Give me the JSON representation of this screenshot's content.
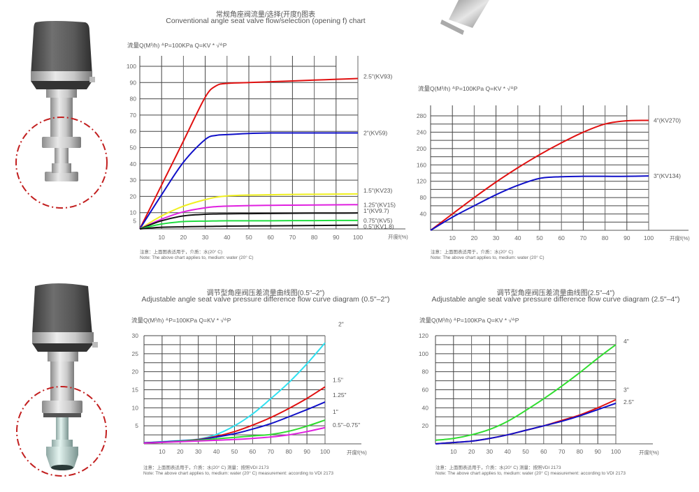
{
  "page": {
    "chart1_title_cn": "常规角座阀流量/选择(开度f)图表",
    "chart1_title_en": "Conventional angle seat valve flow/selection (opening f) chart",
    "chart3_title_cn": "调节型角座阀压差流量曲线图(0.5\"–2\")",
    "chart3_title_en": "Adjustable angle seat valve pressure difference flow curve diagram (0.5\"–2\")",
    "chart4_title_cn": "调节型角座阀压差流量曲线图(2.5\"–4\")",
    "chart4_title_en": "Adjustable angle seat valve pressure difference flow curve diagram (2.5\"–4\")",
    "formula": "流量Q(M³/h)  ᐞP=100KPa   Q=KV *   √ᐞP",
    "x_unit": "开度f(%)",
    "note_cn_simple": "注意：上面图表适用于，介质：水(20° C)",
    "note_en_simple": "Note: The above chart applies to, medium: water (20° C)",
    "note_cn_vdi": "注意：上面图表适用于，介质：水(20° C)  测量：按照VDI 2173",
    "note_en_vdi": "Note: The above chart applies to, medium: water (20° C) measurement: according to VDI 2173"
  },
  "images": {
    "valve_top": "conventional-angle-seat-valve",
    "valve_bottom": "adjustable-angle-seat-valve",
    "valve_partial_top": "valve-body-fragment"
  },
  "chart_data": [
    {
      "type": "line",
      "title": "Conventional angle seat valve flow/selection (opening f) chart",
      "xlabel": "开度f(%)",
      "ylabel": "流量Q(M³/h)",
      "xlim": [
        0,
        100
      ],
      "ylim": [
        0,
        100
      ],
      "xticks": [
        10,
        20,
        30,
        40,
        50,
        60,
        70,
        80,
        90,
        100
      ],
      "yticks": [
        5,
        10,
        20,
        30,
        40,
        50,
        60,
        70,
        80,
        90,
        100
      ],
      "grid": true,
      "x": [
        0,
        10,
        20,
        30,
        35,
        40,
        50,
        60,
        70,
        80,
        90,
        100
      ],
      "series": [
        {
          "name": "2.5\"(KV93)",
          "color": "#e01010",
          "values": [
            0,
            27,
            54,
            81,
            88,
            89.5,
            90,
            90.5,
            91,
            91.5,
            92,
            92.5
          ]
        },
        {
          "name": "2\"(KV59)",
          "color": "#1010c8",
          "values": [
            0,
            21,
            41,
            55,
            57.5,
            58,
            58.7,
            59,
            59,
            59,
            59,
            59
          ]
        },
        {
          "name": "1.5\"(KV23)",
          "color": "#f0f020",
          "values": [
            0,
            8,
            14,
            18,
            19.5,
            20.3,
            20.8,
            21,
            21.2,
            21.3,
            21.4,
            21.5
          ]
        },
        {
          "name": "1.25\"(KV15)",
          "color": "#e020e0",
          "values": [
            0,
            6,
            10.5,
            13,
            13.7,
            14,
            14.3,
            14.5,
            14.6,
            14.7,
            14.8,
            14.9
          ]
        },
        {
          "name": "1\"(KV9.7)",
          "color": "#111111",
          "values": [
            0,
            5,
            8,
            9,
            9.2,
            9.3,
            9.4,
            9.5,
            9.6,
            9.7,
            9.7,
            9.8
          ]
        },
        {
          "name": "0.75\"(KV5)",
          "color": "#20dd40",
          "values": [
            0,
            3,
            4.5,
            4.8,
            4.9,
            5,
            5,
            5,
            5.1,
            5.1,
            5.2,
            5.2
          ]
        },
        {
          "name": "0.5\"(KV1.8)",
          "color": "#111111",
          "values": [
            0,
            1,
            1.3,
            1.5,
            1.6,
            1.7,
            1.8,
            1.9,
            2,
            2.1,
            2.2,
            2.3
          ]
        }
      ]
    },
    {
      "type": "line",
      "title": "",
      "xlabel": "开度f(%)",
      "ylabel": "流量Q(M³/h)",
      "xlim": [
        0,
        100
      ],
      "ylim": [
        0,
        300
      ],
      "xticks": [
        10,
        20,
        30,
        40,
        50,
        60,
        70,
        80,
        90,
        100
      ],
      "yticks": [
        40,
        80,
        120,
        160,
        200,
        240,
        280
      ],
      "grid": true,
      "x": [
        0,
        10,
        20,
        30,
        40,
        50,
        60,
        70,
        80,
        90,
        100
      ],
      "series": [
        {
          "name": "4\"(KV270)",
          "color": "#e01010",
          "values": [
            0,
            40,
            80,
            118,
            153,
            185,
            214,
            240,
            260,
            268,
            269
          ]
        },
        {
          "name": "3\"(KV134)",
          "color": "#1010c8",
          "values": [
            0,
            32,
            60,
            87,
            110,
            127,
            131,
            132,
            132,
            132,
            133
          ]
        }
      ]
    },
    {
      "type": "line",
      "title": "Adjustable angle seat valve pressure difference flow curve diagram (0.5\"–2\")",
      "xlabel": "开度f(%)",
      "ylabel": "流量Q(M³/h)",
      "xlim": [
        0,
        100
      ],
      "ylim": [
        0,
        30
      ],
      "xticks": [
        10,
        20,
        30,
        40,
        50,
        60,
        70,
        80,
        90,
        100
      ],
      "yticks": [
        5,
        10,
        15,
        20,
        25,
        30
      ],
      "grid": true,
      "x": [
        0,
        10,
        20,
        30,
        40,
        50,
        60,
        70,
        80,
        90,
        100
      ],
      "series": [
        {
          "name": "2\"",
          "color": "#30e0f0",
          "values": [
            0.3,
            0.6,
            0.9,
            1.3,
            2.6,
            5,
            8.3,
            12.5,
            17,
            22.2,
            28
          ]
        },
        {
          "name": "1.5\"",
          "color": "#e01010",
          "values": [
            0.3,
            0.5,
            0.8,
            1.2,
            2.1,
            3.4,
            5.2,
            7.3,
            9.8,
            12.6,
            15.8
          ]
        },
        {
          "name": "1.25\"",
          "color": "#1010c8",
          "values": [
            0.3,
            0.5,
            0.8,
            1.1,
            1.9,
            2.8,
            4.1,
            5.6,
            7.5,
            9.5,
            11.6
          ]
        },
        {
          "name": "1\"",
          "color": "#30dd30",
          "values": [
            0.2,
            0.4,
            0.7,
            1,
            1.4,
            1.8,
            2.2,
            2.6,
            3.5,
            4.9,
            6.6
          ]
        },
        {
          "name": "0.5\"–0.75\"",
          "color": "#e020e0",
          "values": [
            0.2,
            0.4,
            0.6,
            0.8,
            1,
            1.2,
            1.5,
            1.9,
            2.5,
            3.4,
            4.5
          ]
        }
      ]
    },
    {
      "type": "line",
      "title": "Adjustable angle seat valve pressure difference flow curve diagram (2.5\"–4\")",
      "xlabel": "开度f(%)",
      "ylabel": "流量Q(M³/h)",
      "xlim": [
        0,
        100
      ],
      "ylim": [
        0,
        120
      ],
      "xticks": [
        10,
        20,
        30,
        40,
        50,
        60,
        70,
        80,
        90,
        100
      ],
      "yticks": [
        20,
        40,
        60,
        80,
        100,
        120
      ],
      "grid": true,
      "x": [
        0,
        10,
        20,
        30,
        40,
        50,
        60,
        70,
        80,
        90,
        100
      ],
      "series": [
        {
          "name": "4\"",
          "color": "#30dd30",
          "values": [
            4,
            6,
            10,
            16,
            25,
            37,
            50,
            64,
            79,
            95,
            110
          ]
        },
        {
          "name": "3\"",
          "color": "#e01010",
          "values": [
            0,
            1.5,
            3,
            6,
            10,
            15,
            20,
            26,
            32,
            40,
            49
          ]
        },
        {
          "name": "2.5\"",
          "color": "#1010c8",
          "values": [
            0,
            1.5,
            3,
            6,
            10,
            15,
            20,
            25,
            31,
            38,
            45
          ]
        }
      ]
    }
  ]
}
